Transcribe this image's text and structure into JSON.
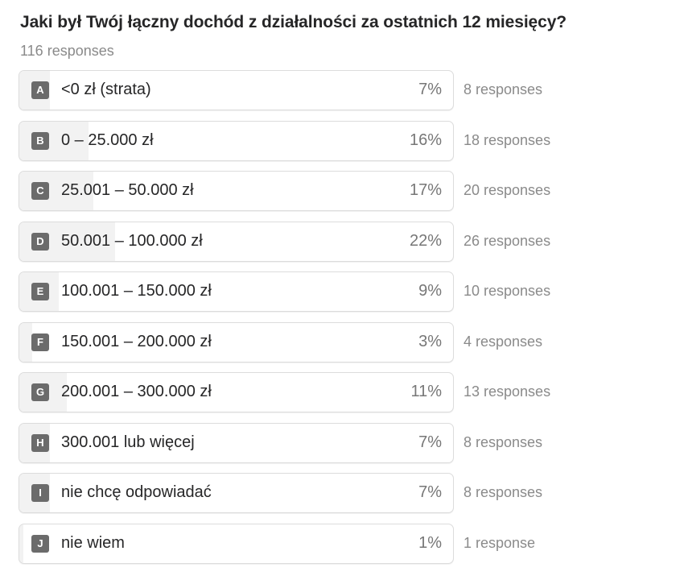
{
  "question": {
    "title": "Jaki był Twój łączny dochód z działalności za ostatnich 12 miesięcy?",
    "total_responses": "116 responses"
  },
  "options": [
    {
      "letter": "A",
      "label": "<0 zł (strata)",
      "percent": "7%",
      "value": 7,
      "count": "8 responses"
    },
    {
      "letter": "B",
      "label": "0 – 25.000 zł",
      "percent": "16%",
      "value": 16,
      "count": "18 responses"
    },
    {
      "letter": "C",
      "label": "25.001 – 50.000 zł",
      "percent": "17%",
      "value": 17,
      "count": "20 responses"
    },
    {
      "letter": "D",
      "label": "50.001 – 100.000 zł",
      "percent": "22%",
      "value": 22,
      "count": "26 responses"
    },
    {
      "letter": "E",
      "label": "100.001 – 150.000 zł",
      "percent": "9%",
      "value": 9,
      "count": "10 responses"
    },
    {
      "letter": "F",
      "label": "150.001 – 200.000 zł",
      "percent": "3%",
      "value": 3,
      "count": "4 responses"
    },
    {
      "letter": "G",
      "label": "200.001 – 300.000 zł",
      "percent": "11%",
      "value": 11,
      "count": "13 responses"
    },
    {
      "letter": "H",
      "label": "300.001 lub więcej",
      "percent": "7%",
      "value": 7,
      "count": "8 responses"
    },
    {
      "letter": "I",
      "label": "nie chcę odpowiadać",
      "percent": "7%",
      "value": 7,
      "count": "8 responses"
    },
    {
      "letter": "J",
      "label": "nie wiem",
      "percent": "1%",
      "value": 1,
      "count": "1 response"
    }
  ],
  "colors": {
    "fill": "#f2f2f2",
    "badge": "#6b6b6b",
    "border": "#dcdcdc",
    "text": "#262627",
    "muted": "#8a8a8a"
  },
  "chart_data": {
    "type": "bar",
    "orientation": "horizontal",
    "title": "Jaki był Twój łączny dochód z działalności za ostatnich 12 miesięcy?",
    "subtitle": "116 responses",
    "categories": [
      "<0 zł (strata)",
      "0 – 25.000 zł",
      "25.001 – 50.000 zł",
      "50.001 – 100.000 zł",
      "100.001 – 150.000 zł",
      "150.001 – 200.000 zł",
      "200.001 – 300.000 zł",
      "300.001 lub więcej",
      "nie chcę odpowiadać",
      "nie wiem"
    ],
    "series": [
      {
        "name": "percent",
        "values": [
          7,
          16,
          17,
          22,
          9,
          3,
          11,
          7,
          7,
          1
        ]
      },
      {
        "name": "responses",
        "values": [
          8,
          18,
          20,
          26,
          10,
          4,
          13,
          8,
          8,
          1
        ]
      }
    ],
    "xlabel": "",
    "ylabel": "",
    "xlim": [
      0,
      100
    ],
    "grid": false,
    "legend": "none"
  }
}
